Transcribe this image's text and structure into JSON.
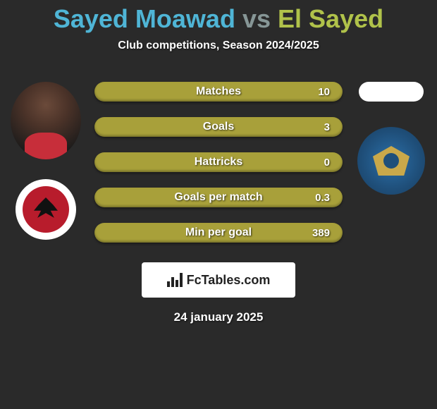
{
  "colors": {
    "background": "#2a2a2a",
    "title_player1": "#4fb5d6",
    "title_vs": "#869696",
    "title_player2": "#b0c24a",
    "stat_fill": "#a8a03a",
    "stat_text": "#ffffff",
    "stat_shadow": "rgba(0,0,0,0.7)"
  },
  "title": {
    "player1": "Sayed Moawad",
    "vs": "vs",
    "player2": "El Sayed"
  },
  "subtitle": "Club competitions, Season 2024/2025",
  "stats": [
    {
      "label": "Matches",
      "value": "10",
      "left_pct": 0,
      "right_pct": 100
    },
    {
      "label": "Goals",
      "value": "3",
      "left_pct": 0,
      "right_pct": 100
    },
    {
      "label": "Hattricks",
      "value": "0",
      "left_pct": 0,
      "right_pct": 100
    },
    {
      "label": "Goals per match",
      "value": "0.3",
      "left_pct": 0,
      "right_pct": 100
    },
    {
      "label": "Min per goal",
      "value": "389",
      "left_pct": 0,
      "right_pct": 100
    }
  ],
  "footer_logo_text": "FcTables.com",
  "date": "24 january 2025",
  "pill_style": {
    "height": 28,
    "border_radius": 14,
    "label_fontsize": 16,
    "value_fontsize": 15
  }
}
